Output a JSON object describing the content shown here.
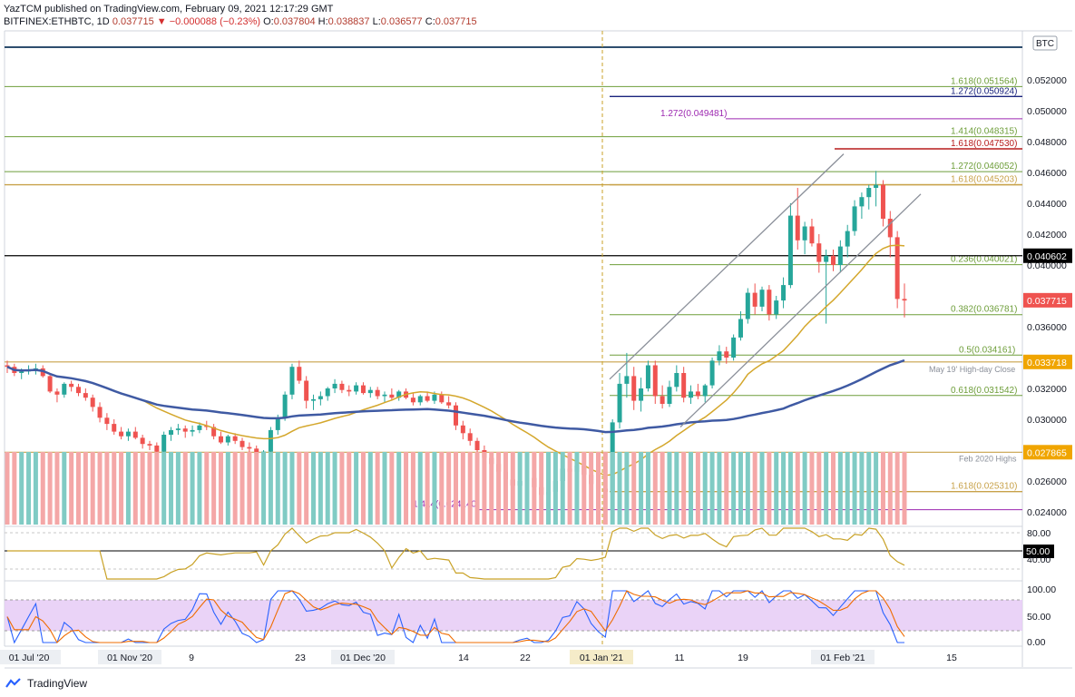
{
  "header": {
    "line1": "YazTCM published on TradingView.com, February 09, 2021 12:17:29 GMT",
    "symbol": "BITFINEX:ETHBTC, 1D",
    "last": "0.037715",
    "change": "▼ −0.000088 (−0.23%)",
    "o_label": "O:",
    "o": "0.037804",
    "h_label": "H:",
    "h": "0.038837",
    "l_label": "L:",
    "l": "0.036577",
    "c_label": "C:",
    "c": "0.037715"
  },
  "footer": {
    "brand": "TradingView"
  },
  "colors": {
    "up": "#26a69a",
    "down": "#ef5350",
    "upVol": "#80cbc4",
    "downVol": "#f4a7a7",
    "ma_gold": "#d4a72c",
    "ma_blue": "#3f5aa3",
    "fib_green": "#6e9e3a",
    "fib_orange": "#c8a24a",
    "fib_purple": "#9c27b0",
    "fib_red": "#b71c1c",
    "fib_navy": "#1a237e",
    "stoch_bg": "#e5c8f5"
  },
  "chart_data": {
    "type": "candlestick",
    "currency": "BTC",
    "price_axis": {
      "ticks": [
        "0.052000",
        "0.050000",
        "0.048000",
        "0.046000",
        "0.044000",
        "0.042000",
        "0.040000",
        "0.036000",
        "0.032000",
        "0.030000",
        "0.026000",
        "0.024000"
      ],
      "markers": [
        {
          "label": "0.040602",
          "value": 0.040602,
          "style": "black"
        },
        {
          "label": "0.037715",
          "value": 0.037715,
          "style": "red"
        },
        {
          "label": "0.033718",
          "value": 0.033718,
          "style": "gold"
        },
        {
          "label": "0.027865",
          "value": 0.027865,
          "style": "gold"
        }
      ]
    },
    "time_axis": [
      "01 Jul '20",
      "01 Nov '20",
      "9",
      "23",
      "01 Dec '20",
      "14",
      "22",
      "01 Jan '21",
      "11",
      "19",
      "01 Feb '21",
      "15"
    ],
    "fib_levels": [
      {
        "label": "1.618(0.051564)",
        "value": 0.051564,
        "color": "green"
      },
      {
        "label": "1.272(0.050924)",
        "value": 0.050924,
        "color": "navy"
      },
      {
        "label": "1.272(0.049481)",
        "value": 0.049481,
        "color": "purple"
      },
      {
        "label": "1.414(0.048315)",
        "value": 0.048315,
        "color": "green"
      },
      {
        "label": "1.618(0.047530)",
        "value": 0.04753,
        "color": "red"
      },
      {
        "label": "1.272(0.046052)",
        "value": 0.046052,
        "color": "green"
      },
      {
        "label": "1.618(0.045203)",
        "value": 0.045203,
        "color": "orange"
      },
      {
        "label": "0.236(0.040021)",
        "value": 0.040021,
        "color": "green"
      },
      {
        "label": "0.382(0.036781)",
        "value": 0.036781,
        "color": "green"
      },
      {
        "label": "0.5(0.034161)",
        "value": 0.034161,
        "color": "green"
      },
      {
        "label": "0.618(0.031542)",
        "value": 0.031542,
        "color": "green"
      },
      {
        "label": "1.618(0.025310)",
        "value": 0.02531,
        "color": "orange"
      },
      {
        "label": "1.414(0.024140)",
        "value": 0.02414,
        "color": "purple"
      }
    ],
    "annotations": [
      "May 19' High-day Close",
      "Feb 2020 Highs"
    ],
    "candles_approx": [
      [
        0.0335,
        0.0338,
        0.033,
        0.0334
      ],
      [
        0.0334,
        0.0336,
        0.0328,
        0.033
      ],
      [
        0.033,
        0.0333,
        0.0326,
        0.0331
      ],
      [
        0.0331,
        0.0335,
        0.0329,
        0.0332
      ],
      [
        0.0332,
        0.0336,
        0.0329,
        0.0333
      ],
      [
        0.0333,
        0.0335,
        0.0327,
        0.0328
      ],
      [
        0.0328,
        0.033,
        0.0317,
        0.0318
      ],
      [
        0.0318,
        0.032,
        0.0311,
        0.0316
      ],
      [
        0.0316,
        0.0324,
        0.0314,
        0.0323
      ],
      [
        0.0323,
        0.0325,
        0.0318,
        0.0321
      ],
      [
        0.0321,
        0.0323,
        0.0315,
        0.0317
      ],
      [
        0.0317,
        0.032,
        0.0312,
        0.0314
      ],
      [
        0.0314,
        0.0316,
        0.0305,
        0.0308
      ],
      [
        0.0308,
        0.0311,
        0.0298,
        0.0301
      ],
      [
        0.0301,
        0.0304,
        0.0293,
        0.0297
      ],
      [
        0.0297,
        0.03,
        0.029,
        0.0292
      ],
      [
        0.0292,
        0.0295,
        0.0287,
        0.0289
      ],
      [
        0.0289,
        0.0294,
        0.0286,
        0.0292
      ],
      [
        0.0292,
        0.0295,
        0.0287,
        0.0288
      ],
      [
        0.0288,
        0.029,
        0.0281,
        0.0284
      ],
      [
        0.0284,
        0.0286,
        0.028,
        0.0283
      ],
      [
        0.0283,
        0.0285,
        0.0277,
        0.0279
      ],
      [
        0.0279,
        0.0292,
        0.0277,
        0.029
      ],
      [
        0.029,
        0.0295,
        0.0286,
        0.0293
      ],
      [
        0.0293,
        0.0297,
        0.029,
        0.0294
      ],
      [
        0.0294,
        0.0296,
        0.0288,
        0.0292
      ],
      [
        0.0292,
        0.0296,
        0.0289,
        0.0293
      ],
      [
        0.0293,
        0.0298,
        0.0291,
        0.0296
      ],
      [
        0.0296,
        0.0299,
        0.0293,
        0.0295
      ],
      [
        0.0295,
        0.0297,
        0.0287,
        0.0289
      ],
      [
        0.0289,
        0.0292,
        0.0284,
        0.0285
      ],
      [
        0.0285,
        0.029,
        0.0283,
        0.0289
      ],
      [
        0.0289,
        0.0291,
        0.0284,
        0.0286
      ],
      [
        0.0286,
        0.0288,
        0.028,
        0.0282
      ],
      [
        0.0282,
        0.0285,
        0.0278,
        0.0281
      ],
      [
        0.0281,
        0.0283,
        0.0276,
        0.0278
      ],
      [
        0.0278,
        0.028,
        0.0276,
        0.0279
      ],
      [
        0.0279,
        0.0295,
        0.0277,
        0.0293
      ],
      [
        0.0293,
        0.0303,
        0.029,
        0.0301
      ],
      [
        0.0301,
        0.0318,
        0.0299,
        0.0316
      ],
      [
        0.0316,
        0.0336,
        0.0313,
        0.0334
      ],
      [
        0.0334,
        0.0338,
        0.0323,
        0.0325
      ],
      [
        0.0325,
        0.0328,
        0.0307,
        0.0312
      ],
      [
        0.0312,
        0.0316,
        0.0306,
        0.0313
      ],
      [
        0.0313,
        0.0318,
        0.0309,
        0.0315
      ],
      [
        0.0315,
        0.0321,
        0.0312,
        0.032
      ],
      [
        0.032,
        0.0326,
        0.0317,
        0.0323
      ],
      [
        0.0323,
        0.0325,
        0.0317,
        0.0319
      ],
      [
        0.0319,
        0.0322,
        0.0315,
        0.0318
      ],
      [
        0.0318,
        0.0324,
        0.0316,
        0.0322
      ],
      [
        0.0322,
        0.0324,
        0.0316,
        0.0317
      ],
      [
        0.0317,
        0.0321,
        0.0314,
        0.0319
      ],
      [
        0.0319,
        0.0321,
        0.0313,
        0.0315
      ],
      [
        0.0315,
        0.0318,
        0.0311,
        0.0316
      ],
      [
        0.0316,
        0.032,
        0.0312,
        0.0314
      ],
      [
        0.0314,
        0.0319,
        0.0312,
        0.0318
      ],
      [
        0.0318,
        0.032,
        0.0313,
        0.0314
      ],
      [
        0.0314,
        0.0317,
        0.0309,
        0.0311
      ],
      [
        0.0311,
        0.0316,
        0.0309,
        0.0315
      ],
      [
        0.0315,
        0.0318,
        0.0311,
        0.0312
      ],
      [
        0.0312,
        0.0318,
        0.031,
        0.0316
      ],
      [
        0.0316,
        0.0318,
        0.031,
        0.0311
      ],
      [
        0.0311,
        0.0315,
        0.0307,
        0.0309
      ],
      [
        0.0309,
        0.0311,
        0.0293,
        0.0296
      ],
      [
        0.0296,
        0.0299,
        0.0287,
        0.0291
      ],
      [
        0.0291,
        0.0294,
        0.0283,
        0.0286
      ],
      [
        0.0286,
        0.0288,
        0.0277,
        0.028
      ],
      [
        0.028,
        0.0283,
        0.0272,
        0.0275
      ],
      [
        0.0275,
        0.0277,
        0.0268,
        0.0271
      ],
      [
        0.0271,
        0.0274,
        0.0264,
        0.0266
      ],
      [
        0.0266,
        0.0269,
        0.0259,
        0.0261
      ],
      [
        0.0261,
        0.0265,
        0.0254,
        0.0257
      ],
      [
        0.0257,
        0.0262,
        0.0255,
        0.026
      ],
      [
        0.026,
        0.0264,
        0.0256,
        0.0262
      ],
      [
        0.0262,
        0.0264,
        0.0253,
        0.0256
      ],
      [
        0.0256,
        0.0259,
        0.0248,
        0.0251
      ],
      [
        0.0251,
        0.0256,
        0.0245,
        0.0253
      ],
      [
        0.0253,
        0.0262,
        0.025,
        0.026
      ],
      [
        0.026,
        0.027,
        0.0258,
        0.0268
      ],
      [
        0.0268,
        0.0275,
        0.0263,
        0.0266
      ],
      [
        0.0266,
        0.0272,
        0.0263,
        0.027
      ],
      [
        0.027,
        0.0272,
        0.0262,
        0.0264
      ],
      [
        0.0264,
        0.0267,
        0.0256,
        0.0258
      ],
      [
        0.0258,
        0.0261,
        0.0252,
        0.0255
      ],
      [
        0.0255,
        0.0258,
        0.025,
        0.0253
      ],
      [
        0.0253,
        0.03,
        0.025,
        0.0298
      ],
      [
        0.0298,
        0.033,
        0.0294,
        0.0323
      ],
      [
        0.0323,
        0.0343,
        0.0314,
        0.0328
      ],
      [
        0.0328,
        0.0334,
        0.0306,
        0.0312
      ],
      [
        0.0312,
        0.0327,
        0.0305,
        0.032
      ],
      [
        0.032,
        0.0338,
        0.0318,
        0.0335
      ],
      [
        0.0335,
        0.0338,
        0.031,
        0.0315
      ],
      [
        0.0315,
        0.0322,
        0.0307,
        0.031
      ],
      [
        0.031,
        0.0325,
        0.0308,
        0.0321
      ],
      [
        0.0321,
        0.0335,
        0.0318,
        0.033
      ],
      [
        0.033,
        0.0334,
        0.0311,
        0.0314
      ],
      [
        0.0314,
        0.0322,
        0.031,
        0.0318
      ],
      [
        0.0318,
        0.0323,
        0.0313,
        0.0315
      ],
      [
        0.0315,
        0.0323,
        0.0311,
        0.0322
      ],
      [
        0.0322,
        0.034,
        0.032,
        0.0338
      ],
      [
        0.0338,
        0.0348,
        0.0335,
        0.0344
      ],
      [
        0.0344,
        0.0347,
        0.0336,
        0.034
      ],
      [
        0.034,
        0.0355,
        0.0338,
        0.0353
      ],
      [
        0.0353,
        0.037,
        0.0351,
        0.0365
      ],
      [
        0.0365,
        0.0385,
        0.0362,
        0.0382
      ],
      [
        0.0382,
        0.0388,
        0.0368,
        0.0373
      ],
      [
        0.0373,
        0.0386,
        0.037,
        0.0384
      ],
      [
        0.0384,
        0.0387,
        0.0364,
        0.0368
      ],
      [
        0.0368,
        0.038,
        0.0365,
        0.0377
      ],
      [
        0.0377,
        0.0392,
        0.0372,
        0.0387
      ],
      [
        0.0387,
        0.044,
        0.0385,
        0.0432
      ],
      [
        0.0432,
        0.045,
        0.041,
        0.0416
      ],
      [
        0.0416,
        0.0428,
        0.0407,
        0.0425
      ],
      [
        0.0425,
        0.043,
        0.0412,
        0.0414
      ],
      [
        0.0414,
        0.042,
        0.0395,
        0.0402
      ],
      [
        0.0402,
        0.041,
        0.0362,
        0.0406
      ],
      [
        0.0406,
        0.041,
        0.0396,
        0.04
      ],
      [
        0.04,
        0.0416,
        0.0395,
        0.0412
      ],
      [
        0.0412,
        0.0426,
        0.0405,
        0.0422
      ],
      [
        0.0422,
        0.0442,
        0.0419,
        0.0438
      ],
      [
        0.0438,
        0.0447,
        0.043,
        0.0444
      ],
      [
        0.0444,
        0.0452,
        0.0436,
        0.045
      ],
      [
        0.045,
        0.0461,
        0.0438,
        0.0452
      ],
      [
        0.0452,
        0.0455,
        0.0425,
        0.043
      ],
      [
        0.043,
        0.0435,
        0.0405,
        0.0418
      ],
      [
        0.0418,
        0.0422,
        0.0372,
        0.0378
      ],
      [
        0.0378,
        0.0388,
        0.0366,
        0.0377
      ]
    ],
    "rsi_panel": {
      "levels": [
        "80.00",
        "50.00",
        "40.00"
      ],
      "current": "50.00"
    },
    "stoch_panel": {
      "levels": [
        "100.00",
        "50.00",
        "0.00"
      ]
    }
  }
}
